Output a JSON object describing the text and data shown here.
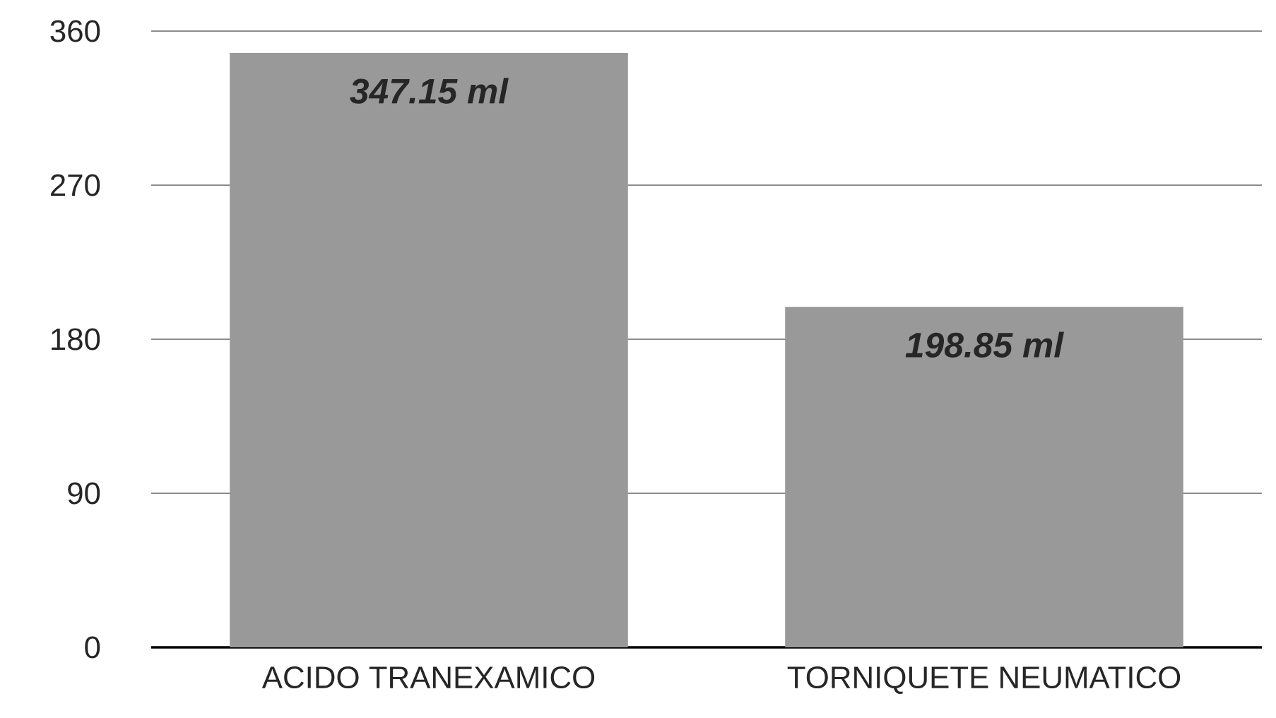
{
  "chart_data": {
    "type": "bar",
    "categories": [
      "ACIDO TRANEXAMICO",
      "TORNIQUETE NEUMATICO"
    ],
    "values": [
      347.15,
      198.85
    ],
    "value_labels": [
      "347.15 ml",
      "198.85 ml"
    ],
    "color": "#999999",
    "ylim": [
      0,
      360
    ],
    "yticks": [
      0,
      90,
      180,
      270,
      360
    ],
    "grid": "y"
  }
}
